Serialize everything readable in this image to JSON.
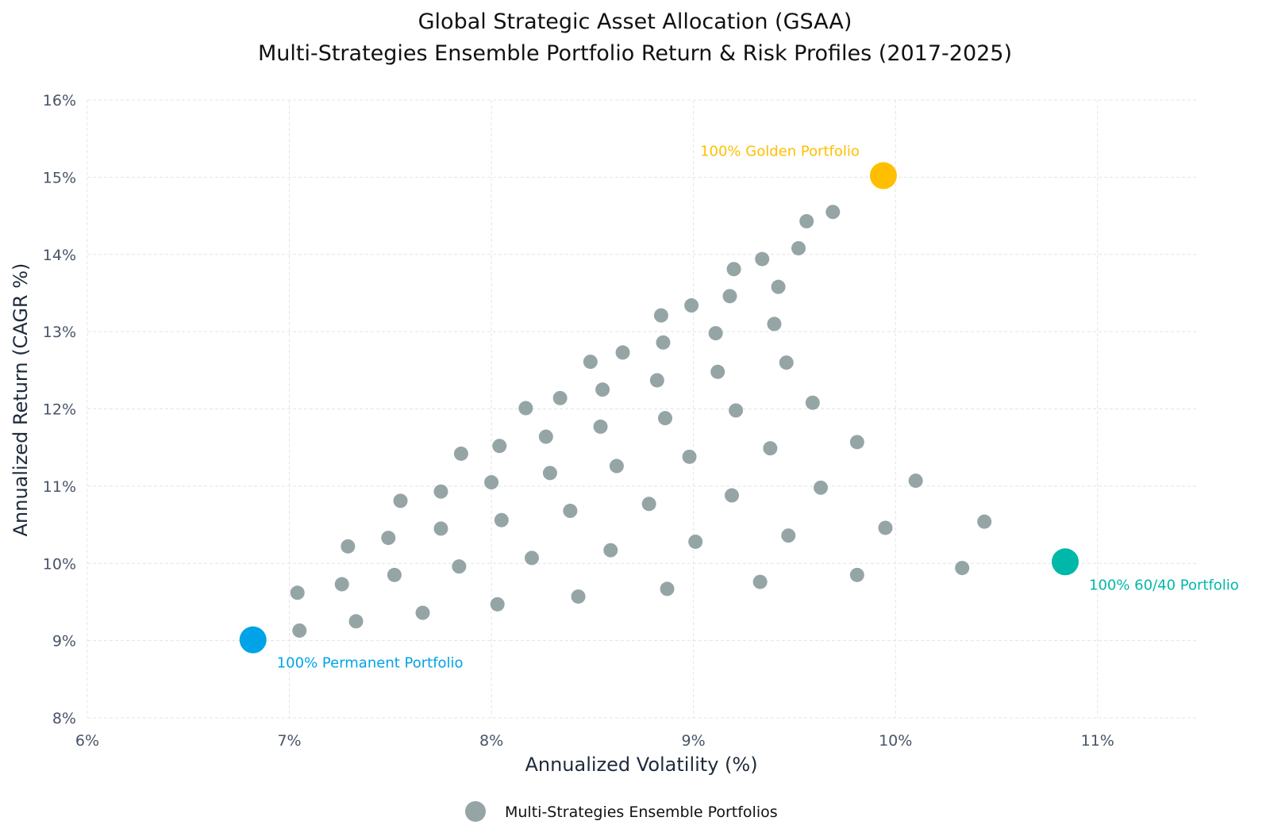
{
  "chart_data": {
    "type": "scatter",
    "title": "Global Strategic Asset Allocation (GSAA)",
    "subtitle": "Multi-Strategies Ensemble Portfolio Return & Risk Profiles (2017-2025)",
    "xlabel": "Annualized Volatility (%)",
    "ylabel": "Annualized Return (CAGR %)",
    "xlim": [
      6,
      11.5
    ],
    "ylim": [
      8,
      16
    ],
    "xticks": [
      6,
      7,
      8,
      9,
      10,
      11
    ],
    "yticks": [
      8,
      9,
      10,
      11,
      12,
      13,
      14,
      15,
      16
    ],
    "xtick_labels": [
      "6%",
      "7%",
      "8%",
      "9%",
      "10%",
      "11%"
    ],
    "ytick_labels": [
      "8%",
      "9%",
      "10%",
      "11%",
      "12%",
      "13%",
      "14%",
      "15%",
      "16%"
    ],
    "grid": true,
    "legend_position": "bottom-center",
    "series": [
      {
        "name": "Multi-Strategies Ensemble Portfolios",
        "color": "#95a5a6",
        "points": [
          [
            7.04,
            9.62
          ],
          [
            7.05,
            9.13
          ],
          [
            7.29,
            10.22
          ],
          [
            7.26,
            9.73
          ],
          [
            7.33,
            9.25
          ],
          [
            7.49,
            10.33
          ],
          [
            7.52,
            9.85
          ],
          [
            7.55,
            10.81
          ],
          [
            7.66,
            9.36
          ],
          [
            7.75,
            10.93
          ],
          [
            7.75,
            10.45
          ],
          [
            7.84,
            9.96
          ],
          [
            7.85,
            11.42
          ],
          [
            8.0,
            11.05
          ],
          [
            8.04,
            11.52
          ],
          [
            8.05,
            10.56
          ],
          [
            8.03,
            9.47
          ],
          [
            8.17,
            12.01
          ],
          [
            8.2,
            10.07
          ],
          [
            8.27,
            11.64
          ],
          [
            8.29,
            11.17
          ],
          [
            8.34,
            12.14
          ],
          [
            8.39,
            10.68
          ],
          [
            8.43,
            9.57
          ],
          [
            8.49,
            12.61
          ],
          [
            8.54,
            11.77
          ],
          [
            8.55,
            12.25
          ],
          [
            8.59,
            10.17
          ],
          [
            8.62,
            11.26
          ],
          [
            8.65,
            12.73
          ],
          [
            8.78,
            10.77
          ],
          [
            8.82,
            12.37
          ],
          [
            8.84,
            13.21
          ],
          [
            8.85,
            12.86
          ],
          [
            8.86,
            11.88
          ],
          [
            8.87,
            9.67
          ],
          [
            8.98,
            11.38
          ],
          [
            8.99,
            13.34
          ],
          [
            9.01,
            10.28
          ],
          [
            9.11,
            12.98
          ],
          [
            9.12,
            12.48
          ],
          [
            9.18,
            13.46
          ],
          [
            9.19,
            10.88
          ],
          [
            9.2,
            13.81
          ],
          [
            9.21,
            11.98
          ],
          [
            9.33,
            9.76
          ],
          [
            9.34,
            13.94
          ],
          [
            9.38,
            11.49
          ],
          [
            9.4,
            13.1
          ],
          [
            9.42,
            13.58
          ],
          [
            9.46,
            12.6
          ],
          [
            9.47,
            10.36
          ],
          [
            9.52,
            14.08
          ],
          [
            9.56,
            14.43
          ],
          [
            9.59,
            12.08
          ],
          [
            9.63,
            10.98
          ],
          [
            9.69,
            14.55
          ],
          [
            9.81,
            11.57
          ],
          [
            9.81,
            9.85
          ],
          [
            9.95,
            10.46
          ],
          [
            10.1,
            11.07
          ],
          [
            10.33,
            9.94
          ],
          [
            10.44,
            10.54
          ]
        ]
      }
    ],
    "highlights": [
      {
        "name": "100% Permanent Portfolio",
        "x": 6.82,
        "y": 9.01,
        "color": "#00a3e8",
        "label_anchor": "below-right"
      },
      {
        "name": "100% Golden Portfolio",
        "x": 9.94,
        "y": 15.02,
        "color": "#ffbf00",
        "label_anchor": "above-left"
      },
      {
        "name": "100% 60/40 Portfolio",
        "x": 10.84,
        "y": 10.02,
        "color": "#00b8a9",
        "label_anchor": "below-right"
      }
    ],
    "legend": [
      {
        "label": "Multi-Strategies Ensemble Portfolios",
        "color": "#95a5a6"
      }
    ]
  }
}
